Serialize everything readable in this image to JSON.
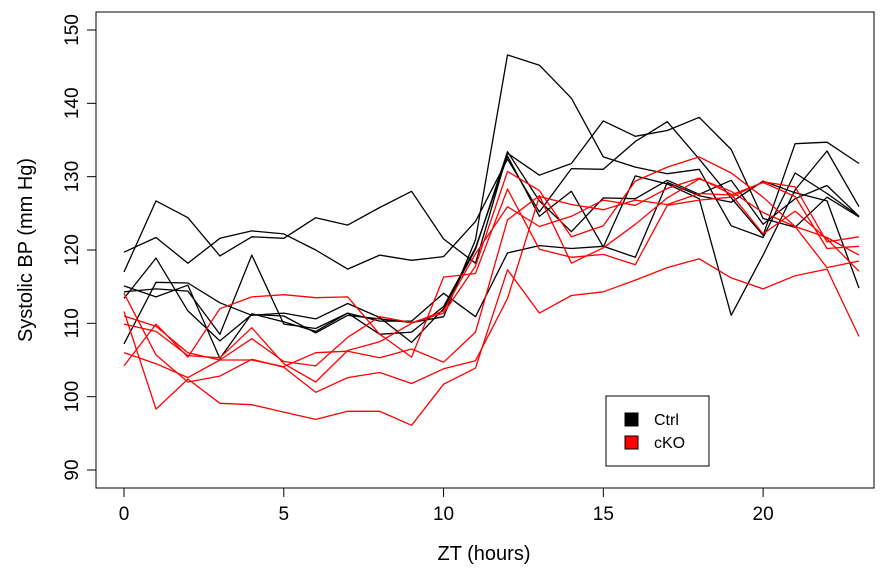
{
  "chart_data": {
    "type": "line",
    "xlabel": "ZT (hours)",
    "ylabel": "Systolic BP (mm Hg)",
    "xlim": [
      0,
      23
    ],
    "ylim": [
      90,
      150
    ],
    "xticks": [
      0,
      5,
      10,
      15,
      20
    ],
    "yticks": [
      90,
      100,
      110,
      120,
      130,
      140,
      150
    ],
    "grid": false,
    "legend_position": "bottom-right",
    "legend": [
      {
        "label": "Ctrl",
        "color": "#000000"
      },
      {
        "label": "cKO",
        "color": "#ff0000"
      }
    ],
    "x": [
      0,
      1,
      2,
      3,
      4,
      5,
      6,
      7,
      8,
      9,
      10,
      11,
      12,
      13,
      14,
      15,
      16,
      17,
      18,
      19,
      20,
      21,
      22,
      23
    ],
    "series": [
      {
        "group": "Ctrl",
        "color": "#000000",
        "values": [
          119.7,
          121.7,
          118.2,
          121.6,
          122.6,
          122.2,
          120.0,
          117.4,
          119.3,
          118.6,
          119.1,
          123.9,
          132.4,
          125.2,
          131.1,
          131.0,
          134.8,
          137.5,
          132.4,
          127.1,
          122.0,
          134.5,
          134.7,
          131.8
        ]
      },
      {
        "group": "Ctrl",
        "color": "#000000",
        "values": [
          117.0,
          126.7,
          124.4,
          119.2,
          121.8,
          121.6,
          124.4,
          123.4,
          125.8,
          128.0,
          121.5,
          118.2,
          133.2,
          130.2,
          131.8,
          137.6,
          135.5,
          136.3,
          138.1,
          133.7,
          124.3,
          123.1,
          127.2,
          124.5
        ]
      },
      {
        "group": "Ctrl",
        "color": "#000000",
        "values": [
          113.4,
          118.9,
          111.7,
          107.6,
          111.2,
          111.0,
          108.7,
          111.1,
          110.6,
          110.1,
          110.9,
          121.4,
          146.6,
          145.2,
          140.7,
          132.7,
          131.3,
          130.4,
          131.0,
          123.3,
          121.7,
          130.5,
          127.7,
          124.6
        ]
      },
      {
        "group": "Ctrl",
        "color": "#000000",
        "values": [
          115.1,
          113.6,
          115.2,
          105.2,
          111.3,
          110.2,
          108.9,
          111.4,
          108.5,
          108.8,
          112.3,
          120.3,
          132.8,
          124.6,
          128.0,
          120.4,
          130.1,
          129.0,
          127.0,
          111.1,
          119.3,
          128.2,
          133.5,
          125.9
        ]
      },
      {
        "group": "Ctrl",
        "color": "#000000",
        "values": [
          107.2,
          115.6,
          115.5,
          112.8,
          111.1,
          111.4,
          110.6,
          112.7,
          110.8,
          107.4,
          112.0,
          120.1,
          133.4,
          126.7,
          122.5,
          127.1,
          127.0,
          129.5,
          127.6,
          129.5,
          123.5,
          127.0,
          128.8,
          124.6
        ]
      },
      {
        "group": "Ctrl",
        "color": "#000000",
        "values": [
          114.3,
          114.7,
          114.4,
          108.5,
          119.3,
          109.9,
          109.3,
          111.4,
          110.3,
          110.3,
          114.1,
          110.9,
          119.6,
          120.6,
          120.2,
          120.5,
          119.0,
          129.2,
          127.4,
          126.5,
          129.4,
          127.8,
          126.7,
          114.8
        ]
      },
      {
        "group": "cKO",
        "color": "#ff0000",
        "values": [
          111.6,
          98.3,
          102.4,
          99.1,
          98.9,
          97.9,
          96.9,
          98.0,
          98.0,
          96.1,
          101.7,
          103.9,
          117.3,
          111.4,
          113.8,
          114.3,
          115.9,
          117.6,
          118.8,
          116.2,
          114.7,
          116.5,
          117.4,
          108.2
        ]
      },
      {
        "group": "cKO",
        "color": "#ff0000",
        "values": [
          104.2,
          109.9,
          105.4,
          112.0,
          113.6,
          113.9,
          113.5,
          113.6,
          108.5,
          105.4,
          116.3,
          116.8,
          128.3,
          120.1,
          119.0,
          119.4,
          118.0,
          126.1,
          126.8,
          127.2,
          129.3,
          128.6,
          121.1,
          121.8
        ]
      },
      {
        "group": "cKO",
        "color": "#ff0000",
        "values": [
          114.1,
          105.7,
          102.0,
          102.8,
          105.1,
          104.0,
          100.6,
          102.6,
          103.3,
          101.8,
          103.8,
          104.9,
          113.4,
          127.3,
          126.2,
          125.5,
          126.8,
          126.2,
          127.7,
          127.5,
          129.2,
          127.3,
          120.2,
          120.5
        ]
      },
      {
        "group": "cKO",
        "color": "#ff0000",
        "values": [
          106.0,
          104.5,
          102.6,
          105.0,
          105.0,
          104.1,
          106.0,
          106.2,
          105.3,
          106.5,
          104.7,
          108.8,
          124.1,
          127.4,
          118.2,
          120.3,
          123.5,
          127.1,
          129.7,
          128.0,
          125.1,
          123.2,
          121.7,
          119.3
        ]
      },
      {
        "group": "cKO",
        "color": "#ff0000",
        "values": [
          109.9,
          108.9,
          105.6,
          105.3,
          109.4,
          104.5,
          102.0,
          106.3,
          107.5,
          110.0,
          111.7,
          119.5,
          125.9,
          123.2,
          124.6,
          126.8,
          126.1,
          128.4,
          129.8,
          127.6,
          122.2,
          125.3,
          121.5,
          117.1
        ]
      },
      {
        "group": "cKO",
        "color": "#ff0000",
        "values": [
          111.0,
          109.6,
          106.0,
          105.0,
          107.9,
          104.8,
          104.2,
          108.1,
          110.9,
          110.1,
          111.4,
          117.8,
          130.7,
          128.1,
          121.8,
          123.3,
          129.4,
          131.3,
          132.7,
          130.5,
          127.2,
          123.2,
          117.6,
          118.5
        ]
      }
    ]
  }
}
